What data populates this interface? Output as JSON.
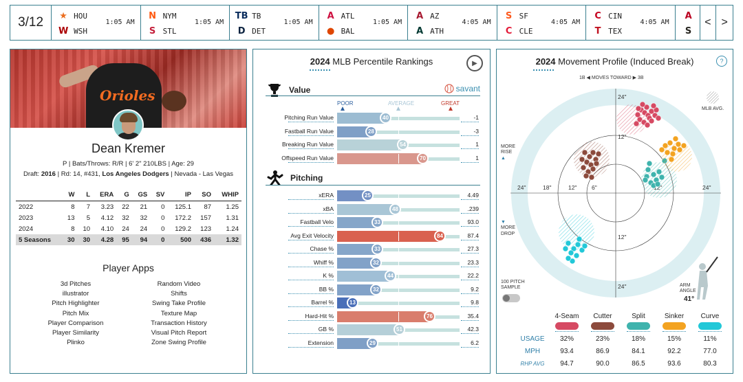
{
  "scoreboard": {
    "date": "3/12",
    "games": [
      {
        "away": "HOU",
        "home": "WSH",
        "time": "1:05 AM",
        "away_logo": "★",
        "home_logo": "W",
        "away_color": "#eb6e1f",
        "home_color": "#ab0003"
      },
      {
        "away": "NYM",
        "home": "STL",
        "time": "1:05 AM",
        "away_logo": "N",
        "home_logo": "S",
        "away_color": "#ff5910",
        "home_color": "#c41e3a"
      },
      {
        "away": "TB",
        "home": "DET",
        "time": "1:05 AM",
        "away_logo": "TB",
        "home_logo": "D",
        "away_color": "#092c5c",
        "home_color": "#0c2340"
      },
      {
        "away": "ATL",
        "home": "BAL",
        "time": "1:05 AM",
        "away_logo": "A",
        "home_logo": "●",
        "away_color": "#ce1141",
        "home_color": "#df4601"
      },
      {
        "away": "AZ",
        "home": "ATH",
        "time": "4:05 AM",
        "away_logo": "A",
        "home_logo": "A",
        "away_color": "#a71930",
        "home_color": "#003831"
      },
      {
        "away": "SF",
        "home": "CLE",
        "time": "4:05 AM",
        "away_logo": "S",
        "home_logo": "C",
        "away_color": "#fd5a1e",
        "home_color": "#e31937"
      },
      {
        "away": "CIN",
        "home": "TEX",
        "time": "4:05 AM",
        "away_logo": "C",
        "home_logo": "T",
        "away_color": "#c6011f",
        "home_color": "#c0111f"
      },
      {
        "away": "",
        "home": "",
        "time": "",
        "away_logo": "A",
        "home_logo": "S",
        "away_color": "#ba0021",
        "home_color": "#27251f"
      }
    ],
    "prev": "<",
    "next": ">"
  },
  "player": {
    "name": "Dean Kremer",
    "jersey_text": "Orioles",
    "info": "P | Bats/Throws: R/R | 6' 2\" 210LBS | Age: 29",
    "draft_label": "Draft: ",
    "draft_year": "2016",
    "draft_rest": " | Rd: 14, #431, ",
    "draft_team": "Los Angeles Dodgers",
    "draft_school": " | Nevada - Las Vegas",
    "stats_headers": [
      "",
      "W",
      "L",
      "ERA",
      "G",
      "GS",
      "SV",
      "IP",
      "SO",
      "WHIP"
    ],
    "stats_rows": [
      [
        "2022",
        "8",
        "7",
        "3.23",
        "22",
        "21",
        "0",
        "125.1",
        "87",
        "1.25"
      ],
      [
        "2023",
        "13",
        "5",
        "4.12",
        "32",
        "32",
        "0",
        "172.2",
        "157",
        "1.31"
      ],
      [
        "2024",
        "8",
        "10",
        "4.10",
        "24",
        "24",
        "0",
        "129.2",
        "123",
        "1.24"
      ],
      [
        "5 Seasons",
        "30",
        "30",
        "4.28",
        "95",
        "94",
        "0",
        "500",
        "436",
        "1.32"
      ]
    ],
    "apps_title": "Player Apps",
    "apps": [
      "3d Pitches",
      "Random Video",
      "illustrator",
      "Shifts",
      "Pitch Highlighter",
      "Swing Take Profile",
      "Pitch Mix",
      "Texture Map",
      "Player Comparison",
      "Transaction History",
      "Player Similarity",
      "Visual Pitch Report",
      "Plinko",
      "Zone Swing Profile"
    ]
  },
  "percentiles": {
    "year": "2024",
    "title": "MLB Percentile Rankings",
    "value_section": "Value",
    "pitching_section": "Pitching",
    "savant": "savant",
    "scale": {
      "poor": "POOR",
      "average": "AVERAGE",
      "great": "GREAT"
    },
    "value_rows": [
      {
        "label": "Pitching Run Value",
        "pct": 40,
        "value": "-1",
        "color": "#9cbcd2"
      },
      {
        "label": "Fastball Run Value",
        "pct": 28,
        "value": "-3",
        "color": "#7f9fc6"
      },
      {
        "label": "Breaking Run Value",
        "pct": 54,
        "value": "1",
        "color": "#b8d2d8"
      },
      {
        "label": "Offspeed Run Value",
        "pct": 70,
        "value": "1",
        "color": "#d9978d"
      }
    ],
    "pitching_rows": [
      {
        "label": "xERA",
        "pct": 25,
        "value": "4.49",
        "color": "#7390c4"
      },
      {
        "label": "xBA",
        "pct": 48,
        "value": ".239",
        "color": "#a9c6d6"
      },
      {
        "label": "Fastball Velo",
        "pct": 33,
        "value": "93.0",
        "color": "#86a6c9"
      },
      {
        "label": "Avg Exit Velocity",
        "pct": 84,
        "value": "87.4",
        "color": "#d9614f"
      },
      {
        "label": "Chase %",
        "pct": 33,
        "value": "27.3",
        "color": "#86a6c9"
      },
      {
        "label": "Whiff %",
        "pct": 32,
        "value": "23.3",
        "color": "#82a2c8"
      },
      {
        "label": "K %",
        "pct": 44,
        "value": "22.2",
        "color": "#a0bfd6"
      },
      {
        "label": "BB %",
        "pct": 32,
        "value": "9.2",
        "color": "#82a2c8"
      },
      {
        "label": "Barrel %",
        "pct": 13,
        "value": "9.8",
        "color": "#4a6fb8"
      },
      {
        "label": "Hard-Hit %",
        "pct": 76,
        "value": "35.4",
        "color": "#d97d6c"
      },
      {
        "label": "GB %",
        "pct": 51,
        "value": "42.3",
        "color": "#b5cfd8"
      },
      {
        "label": "Extension",
        "pct": 29,
        "value": "6.2",
        "color": "#7f9fc6"
      }
    ]
  },
  "movement": {
    "year": "2024",
    "title": "Movement Profile (Induced Break)",
    "help": "?",
    "direction": "1B ◀  MOVES TOWARD  ▶ 3B",
    "mlb_avg": "MLB AVG.",
    "more_rise": "MORE RISE",
    "more_drop": "MORE DROP",
    "sample": "100 PITCH SAMPLE",
    "arm_angle_label": "ARM ANGLE",
    "arm_angle": "41°",
    "ring_labels": [
      "24\"",
      "12\"",
      "12\"",
      "24\""
    ],
    "axis_labels": [
      "24\"",
      "18\"",
      "12\"",
      "6\"",
      "12\"",
      "24\""
    ],
    "pitches": [
      {
        "name": "4-Seam",
        "color": "#d64a63",
        "usage": "32%",
        "mph": "93.4",
        "rhp": "94.7"
      },
      {
        "name": "Cutter",
        "color": "#8c4a3c",
        "usage": "23%",
        "mph": "86.9",
        "rhp": "90.0"
      },
      {
        "name": "Split",
        "color": "#3fb3ad",
        "usage": "18%",
        "mph": "84.1",
        "rhp": "86.5"
      },
      {
        "name": "Sinker",
        "color": "#f3a321",
        "usage": "15%",
        "mph": "92.2",
        "rhp": "93.6"
      },
      {
        "name": "Curve",
        "color": "#22c8d8",
        "usage": "11%",
        "mph": "77.0",
        "rhp": "80.3"
      }
    ],
    "row_labels": {
      "usage": "USAGE",
      "mph": "MPH",
      "rhp": "RHP AVG"
    }
  }
}
